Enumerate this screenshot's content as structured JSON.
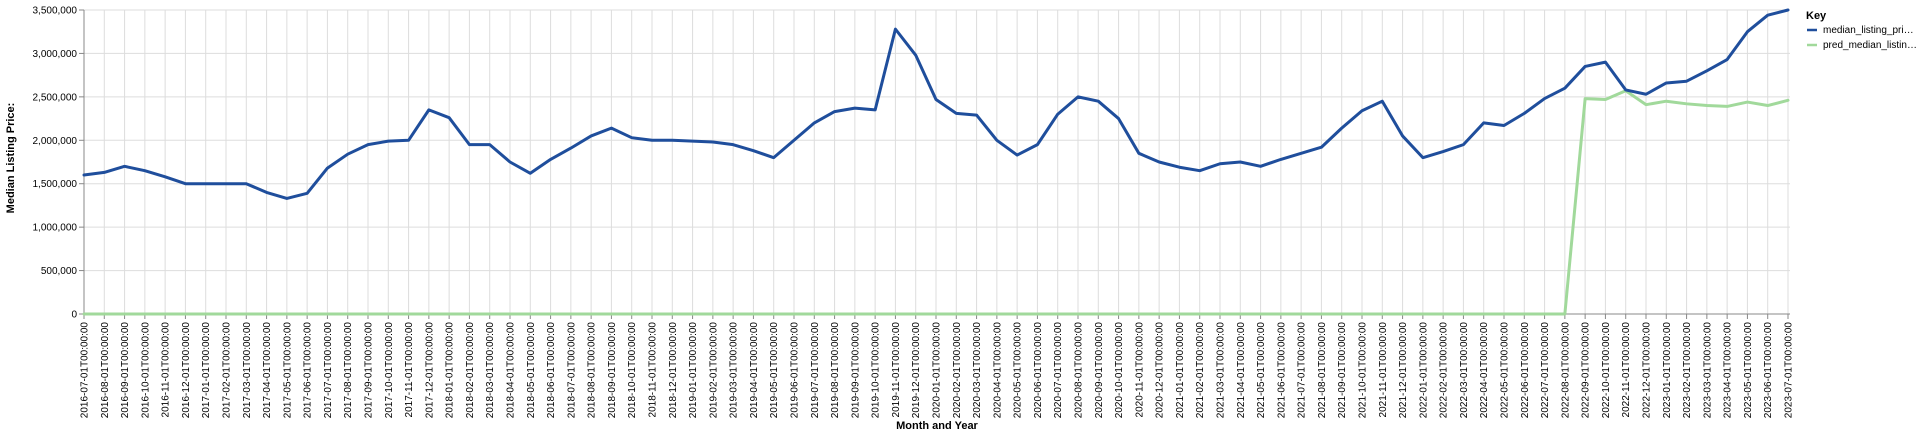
{
  "chart_data": {
    "type": "line",
    "title": "",
    "xlabel": "Month and Year",
    "ylabel": "Median Listing Price:",
    "ylim": [
      0,
      3500000
    ],
    "y_ticks": [
      "0",
      "500,000",
      "1,000,000",
      "1,500,000",
      "2,000,000",
      "2,500,000",
      "3,000,000",
      "3,500,000"
    ],
    "y_tick_values": [
      0,
      500000,
      1000000,
      1500000,
      2000000,
      2500000,
      3000000,
      3500000
    ],
    "grid": true,
    "legend_position": "top-right",
    "legend_title": "Key",
    "x": [
      "2016-07-01T00:00:00",
      "2016-08-01T00:00:00",
      "2016-09-01T00:00:00",
      "2016-10-01T00:00:00",
      "2016-11-01T00:00:00",
      "2016-12-01T00:00:00",
      "2017-01-01T00:00:00",
      "2017-02-01T00:00:00",
      "2017-03-01T00:00:00",
      "2017-04-01T00:00:00",
      "2017-05-01T00:00:00",
      "2017-06-01T00:00:00",
      "2017-07-01T00:00:00",
      "2017-08-01T00:00:00",
      "2017-09-01T00:00:00",
      "2017-10-01T00:00:00",
      "2017-11-01T00:00:00",
      "2017-12-01T00:00:00",
      "2018-01-01T00:00:00",
      "2018-02-01T00:00:00",
      "2018-03-01T00:00:00",
      "2018-04-01T00:00:00",
      "2018-05-01T00:00:00",
      "2018-06-01T00:00:00",
      "2018-07-01T00:00:00",
      "2018-08-01T00:00:00",
      "2018-09-01T00:00:00",
      "2018-10-01T00:00:00",
      "2018-11-01T00:00:00",
      "2018-12-01T00:00:00",
      "2019-01-01T00:00:00",
      "2019-02-01T00:00:00",
      "2019-03-01T00:00:00",
      "2019-04-01T00:00:00",
      "2019-05-01T00:00:00",
      "2019-06-01T00:00:00",
      "2019-07-01T00:00:00",
      "2019-08-01T00:00:00",
      "2019-09-01T00:00:00",
      "2019-10-01T00:00:00",
      "2019-11-01T00:00:00",
      "2019-12-01T00:00:00",
      "2020-01-01T00:00:00",
      "2020-02-01T00:00:00",
      "2020-03-01T00:00:00",
      "2020-04-01T00:00:00",
      "2020-05-01T00:00:00",
      "2020-06-01T00:00:00",
      "2020-07-01T00:00:00",
      "2020-08-01T00:00:00",
      "2020-09-01T00:00:00",
      "2020-10-01T00:00:00",
      "2020-11-01T00:00:00",
      "2020-12-01T00:00:00",
      "2021-01-01T00:00:00",
      "2021-02-01T00:00:00",
      "2021-03-01T00:00:00",
      "2021-04-01T00:00:00",
      "2021-05-01T00:00:00",
      "2021-06-01T00:00:00",
      "2021-07-01T00:00:00",
      "2021-08-01T00:00:00",
      "2021-09-01T00:00:00",
      "2021-10-01T00:00:00",
      "2021-11-01T00:00:00",
      "2021-12-01T00:00:00",
      "2022-01-01T00:00:00",
      "2022-02-01T00:00:00",
      "2022-03-01T00:00:00",
      "2022-04-01T00:00:00",
      "2022-05-01T00:00:00",
      "2022-06-01T00:00:00",
      "2022-07-01T00:00:00",
      "2022-08-01T00:00:00",
      "2022-09-01T00:00:00",
      "2022-10-01T00:00:00",
      "2022-11-01T00:00:00",
      "2022-12-01T00:00:00",
      "2023-01-01T00:00:00",
      "2023-02-01T00:00:00",
      "2023-03-01T00:00:00",
      "2023-04-01T00:00:00",
      "2023-05-01T00:00:00",
      "2023-06-01T00:00:00",
      "2023-07-01T00:00:00"
    ],
    "series": [
      {
        "name": "median_listing_pri…",
        "color": "#1f4e9c",
        "values": [
          1600000,
          1630000,
          1700000,
          1650000,
          1580000,
          1500000,
          1500000,
          1500000,
          1500000,
          1400000,
          1330000,
          1390000,
          1680000,
          1840000,
          1950000,
          1990000,
          2000000,
          2350000,
          2260000,
          1950000,
          1950000,
          1750000,
          1620000,
          1780000,
          1910000,
          2050000,
          2140000,
          2030000,
          2000000,
          2000000,
          1990000,
          1980000,
          1950000,
          1880000,
          1800000,
          2000000,
          2200000,
          2330000,
          2370000,
          2350000,
          3280000,
          2980000,
          2470000,
          2310000,
          2290000,
          2000000,
          1830000,
          1950000,
          2300000,
          2500000,
          2450000,
          2250000,
          1850000,
          1750000,
          1690000,
          1650000,
          1730000,
          1750000,
          1700000,
          1780000,
          1850000,
          1920000,
          2140000,
          2340000,
          2450000,
          2050000,
          1800000,
          1870000,
          1950000,
          2200000,
          2170000,
          2310000,
          2480000,
          2600000,
          2850000,
          2900000,
          2580000,
          2530000,
          2660000,
          2680000,
          2800000,
          2930000,
          3250000,
          3440000,
          3500000
        ]
      },
      {
        "name": "pred_median_listin…",
        "color": "#a1d99b",
        "values": [
          0,
          0,
          0,
          0,
          0,
          0,
          0,
          0,
          0,
          0,
          0,
          0,
          0,
          0,
          0,
          0,
          0,
          0,
          0,
          0,
          0,
          0,
          0,
          0,
          0,
          0,
          0,
          0,
          0,
          0,
          0,
          0,
          0,
          0,
          0,
          0,
          0,
          0,
          0,
          0,
          0,
          0,
          0,
          0,
          0,
          0,
          0,
          0,
          0,
          0,
          0,
          0,
          0,
          0,
          0,
          0,
          0,
          0,
          0,
          0,
          0,
          0,
          0,
          0,
          0,
          0,
          0,
          0,
          0,
          0,
          0,
          0,
          0,
          0,
          2480000,
          2470000,
          2570000,
          2410000,
          2450000,
          2420000,
          2400000,
          2390000,
          2440000,
          2400000,
          2460000
        ]
      }
    ]
  }
}
